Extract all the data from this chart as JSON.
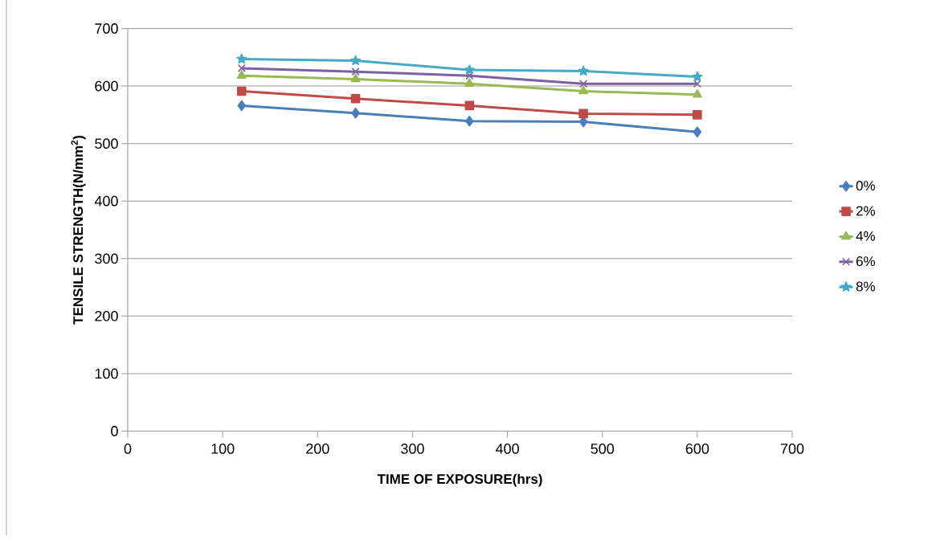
{
  "chart_data": {
    "type": "line",
    "xlabel": "TIME OF EXPOSURE(hrs)",
    "ylabel": "TENSILE STRENGTH(N/mm$^{2}$)",
    "x": [
      120,
      240,
      360,
      480,
      600
    ],
    "series": [
      {
        "name": "0%",
        "color": "#4a7ebb",
        "marker": "diamond",
        "values": [
          566,
          553,
          539,
          538,
          520
        ]
      },
      {
        "name": "2%",
        "color": "#be4b48",
        "marker": "square",
        "values": [
          591,
          578,
          566,
          552,
          550
        ]
      },
      {
        "name": "4%",
        "color": "#98b954",
        "marker": "triangle",
        "values": [
          618,
          612,
          604,
          591,
          585
        ]
      },
      {
        "name": "6%",
        "color": "#7d60a0",
        "marker": "cross",
        "values": [
          631,
          625,
          618,
          604,
          604
        ]
      },
      {
        "name": "8%",
        "color": "#46aac5",
        "marker": "star",
        "values": [
          647,
          644,
          628,
          626,
          616
        ]
      }
    ],
    "xlim": [
      0,
      700
    ],
    "xticks": [
      0,
      100,
      200,
      300,
      400,
      500,
      600,
      700
    ],
    "ylim": [
      0,
      700
    ],
    "yticks": [
      0,
      100,
      200,
      300,
      400,
      500,
      600,
      700
    ],
    "grid": "y",
    "legend": "right",
    "line_style": "solid"
  }
}
